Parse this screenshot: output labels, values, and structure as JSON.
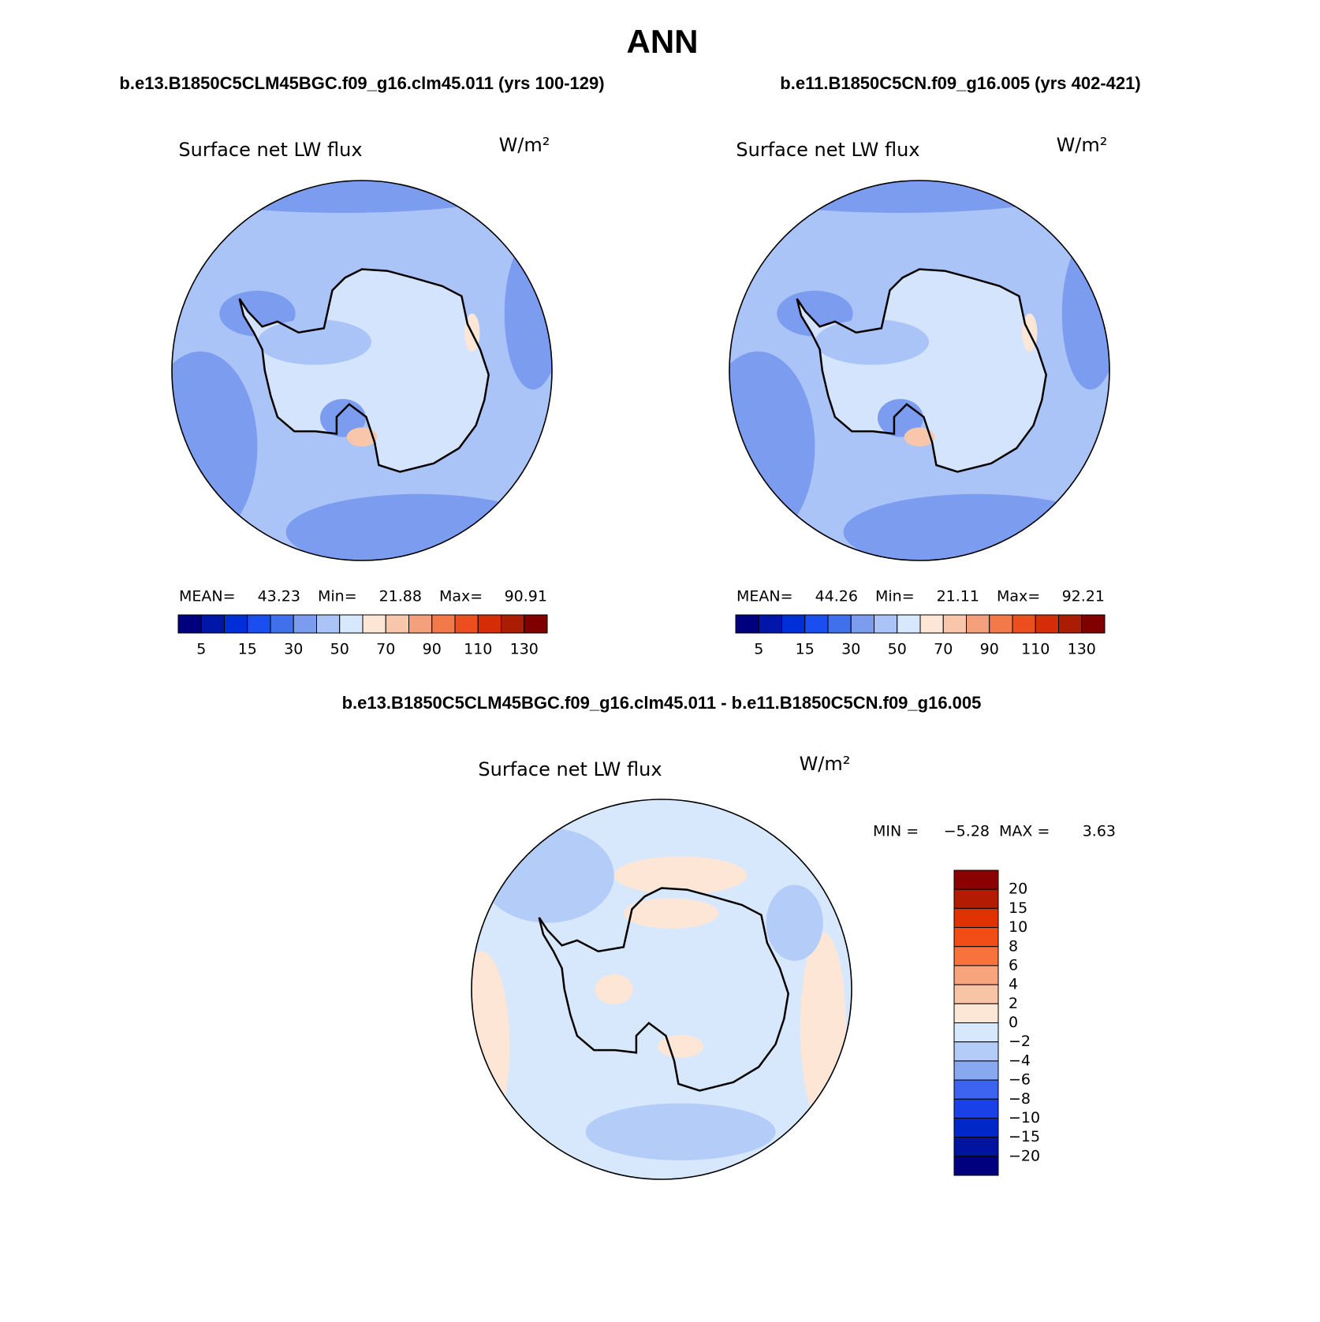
{
  "title": "ANN",
  "panels": [
    {
      "subtitle": "b.e13.B1850C5CLM45BGC.f09_g16.clm45.011 (yrs 100-129)",
      "field": "Surface net LW flux",
      "units": "W/m²",
      "stats": [
        {
          "label": "MEAN=",
          "value": "43.23"
        },
        {
          "label": "Min=",
          "value": "21.88"
        },
        {
          "label": "Max=",
          "value": "90.91"
        }
      ],
      "colorbar": {
        "colors": [
          "#00007f",
          "#0016a8",
          "#002ed8",
          "#1a4ef0",
          "#4070ec",
          "#7c9cf0",
          "#aac4f8",
          "#d8e8fc",
          "#fde6d6",
          "#f8c6aa",
          "#f4a07c",
          "#f27a4a",
          "#ec4e20",
          "#d62c08",
          "#aa1c04",
          "#800000"
        ],
        "labels": [
          "5",
          "15",
          "30",
          "50",
          "70",
          "90",
          "110",
          "130"
        ]
      }
    },
    {
      "subtitle": "b.e11.B1850C5CN.f09_g16.005 (yrs 402-421)",
      "field": "Surface net LW flux",
      "units": "W/m²",
      "stats": [
        {
          "label": "MEAN=",
          "value": "44.26"
        },
        {
          "label": "Min=",
          "value": "21.11"
        },
        {
          "label": "Max=",
          "value": "92.21"
        }
      ],
      "colorbar": {
        "colors": [
          "#00007f",
          "#0016a8",
          "#002ed8",
          "#1a4ef0",
          "#4070ec",
          "#7c9cf0",
          "#aac4f8",
          "#d8e8fc",
          "#fde6d6",
          "#f8c6aa",
          "#f4a07c",
          "#f27a4a",
          "#ec4e20",
          "#d62c08",
          "#aa1c04",
          "#800000"
        ],
        "labels": [
          "5",
          "15",
          "30",
          "50",
          "70",
          "90",
          "110",
          "130"
        ]
      }
    }
  ],
  "difference": {
    "subtitle": "b.e13.B1850C5CLM45BGC.f09_g16.clm45.011 - b.e11.B1850C5CN.f09_g16.005",
    "field": "Surface net LW flux",
    "units": "W/m²",
    "stats": [
      {
        "label": "MIN =",
        "value": "−5.28"
      },
      {
        "label": "MAX =",
        "value": "3.63"
      }
    ],
    "colorbar": {
      "colors": [
        "#8b0000",
        "#b31c00",
        "#e03200",
        "#f04e16",
        "#f8733c",
        "#f8a47c",
        "#f8c4a6",
        "#fce6d6",
        "#d8e8fc",
        "#b4ccf8",
        "#88a8f0",
        "#3c64f0",
        "#1a40e8",
        "#0028c8",
        "#0014a0",
        "#00007f"
      ],
      "labels": [
        "20",
        "15",
        "10",
        "8",
        "6",
        "4",
        "2",
        "0",
        "−2",
        "−4",
        "−6",
        "−8",
        "−10",
        "−15",
        "−20"
      ]
    }
  }
}
